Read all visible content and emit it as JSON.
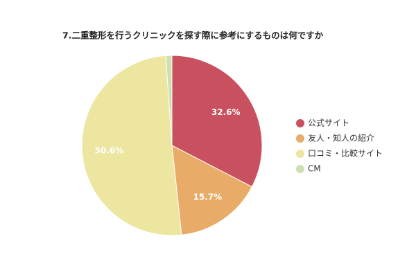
{
  "chart_data": {
    "type": "pie",
    "title": "7.二重整形を行うクリニックを探す際に参考にするものは何ですか",
    "categories": [
      "公式サイト",
      "友人・知人の紹介",
      "口コミ・比較サイト",
      "CM"
    ],
    "values": [
      32.6,
      15.7,
      50.6,
      1.1
    ],
    "value_labels": [
      "32.6%",
      "15.7%",
      "50.6%",
      null
    ],
    "colors": [
      "#c9505e",
      "#e8ab68",
      "#ede6a0",
      "#cfe0b0"
    ],
    "legend": "right"
  }
}
